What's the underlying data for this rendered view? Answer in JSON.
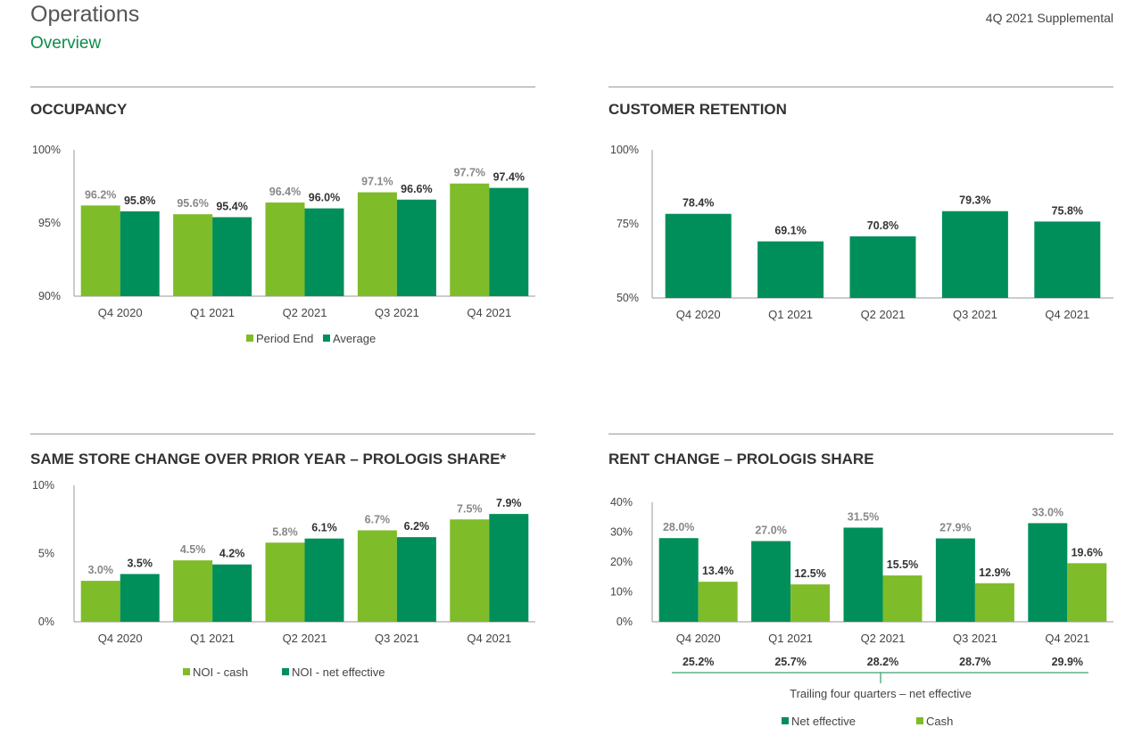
{
  "header": {
    "title": "Operations",
    "subtitle": "Overview",
    "doc_label": "4Q 2021 Supplemental"
  },
  "colors": {
    "light_green": "#7fbc29",
    "dark_green": "#008f5a",
    "title_green": "#0d8a4b"
  },
  "chart_data": [
    {
      "type": "bar",
      "title": "OCCUPANCY",
      "categories": [
        "Q4 2020",
        "Q1 2021",
        "Q2 2021",
        "Q3 2021",
        "Q4 2021"
      ],
      "ylim": [
        90,
        100
      ],
      "yticks": [
        90,
        95,
        100
      ],
      "ytick_labels": [
        "90%",
        "95%",
        "100%"
      ],
      "series": [
        {
          "name": "Period End",
          "color": "#7fbc29",
          "values": [
            96.2,
            95.6,
            96.4,
            97.1,
            97.7
          ],
          "labels": [
            "96.2%",
            "95.6%",
            "96.4%",
            "97.1%",
            "97.7%"
          ]
        },
        {
          "name": "Average",
          "color": "#008f5a",
          "values": [
            95.8,
            95.4,
            96.0,
            96.6,
            97.4
          ],
          "labels": [
            "95.8%",
            "95.4%",
            "96.0%",
            "96.6%",
            "97.4%"
          ]
        }
      ],
      "legend": "bottom"
    },
    {
      "type": "bar",
      "title": "CUSTOMER RETENTION",
      "categories": [
        "Q4 2020",
        "Q1 2021",
        "Q2 2021",
        "Q3 2021",
        "Q4 2021"
      ],
      "ylim": [
        50,
        100
      ],
      "yticks": [
        50,
        75,
        100
      ],
      "ytick_labels": [
        "50%",
        "75%",
        "100%"
      ],
      "series": [
        {
          "color": "#008f5a",
          "values": [
            78.4,
            69.1,
            70.8,
            79.3,
            75.8
          ],
          "labels": [
            "78.4%",
            "69.1%",
            "70.8%",
            "79.3%",
            "75.8%"
          ]
        }
      ]
    },
    {
      "type": "bar",
      "title": "SAME STORE CHANGE OVER PRIOR YEAR – PROLOGIS SHARE*",
      "categories": [
        "Q4 2020",
        "Q1 2021",
        "Q2 2021",
        "Q3 2021",
        "Q4 2021"
      ],
      "ylim": [
        0,
        10
      ],
      "yticks": [
        0,
        5,
        10
      ],
      "ytick_labels": [
        "0%",
        "5%",
        "10%"
      ],
      "series": [
        {
          "name": "NOI - cash",
          "color": "#7fbc29",
          "values": [
            3.0,
            4.5,
            5.8,
            6.7,
            7.5
          ],
          "labels": [
            "3.0%",
            "4.5%",
            "5.8%",
            "6.7%",
            "7.5%"
          ]
        },
        {
          "name": "NOI - net effective",
          "color": "#008f5a",
          "values": [
            3.5,
            4.2,
            6.1,
            6.2,
            7.9
          ],
          "labels": [
            "3.5%",
            "4.2%",
            "6.1%",
            "6.2%",
            "7.9%"
          ]
        }
      ],
      "legend": "bottom"
    },
    {
      "type": "bar",
      "title": "RENT CHANGE – PROLOGIS SHARE",
      "categories": [
        "Q4 2020",
        "Q1 2021",
        "Q2 2021",
        "Q3 2021",
        "Q4 2021"
      ],
      "ylim": [
        0,
        40
      ],
      "yticks": [
        0,
        10,
        20,
        30,
        40
      ],
      "ytick_labels": [
        "0%",
        "10%",
        "20%",
        "30%",
        "40%"
      ],
      "series": [
        {
          "name": "Net effective",
          "color": "#008f5a",
          "values": [
            28.0,
            27.0,
            31.5,
            27.9,
            33.0
          ],
          "labels": [
            "28.0%",
            "27.0%",
            "31.5%",
            "27.9%",
            "33.0%"
          ]
        },
        {
          "name": "Cash",
          "color": "#7fbc29",
          "values": [
            13.4,
            12.5,
            15.5,
            12.9,
            19.6
          ],
          "labels": [
            "13.4%",
            "12.5%",
            "15.5%",
            "12.9%",
            "19.6%"
          ]
        }
      ],
      "trailing": {
        "label": "Trailing four quarters – net effective",
        "values": [
          25.2,
          25.7,
          28.2,
          28.7,
          29.9
        ],
        "labels": [
          "25.2%",
          "25.7%",
          "28.2%",
          "28.7%",
          "29.9%"
        ]
      },
      "legend": "bottom"
    }
  ]
}
